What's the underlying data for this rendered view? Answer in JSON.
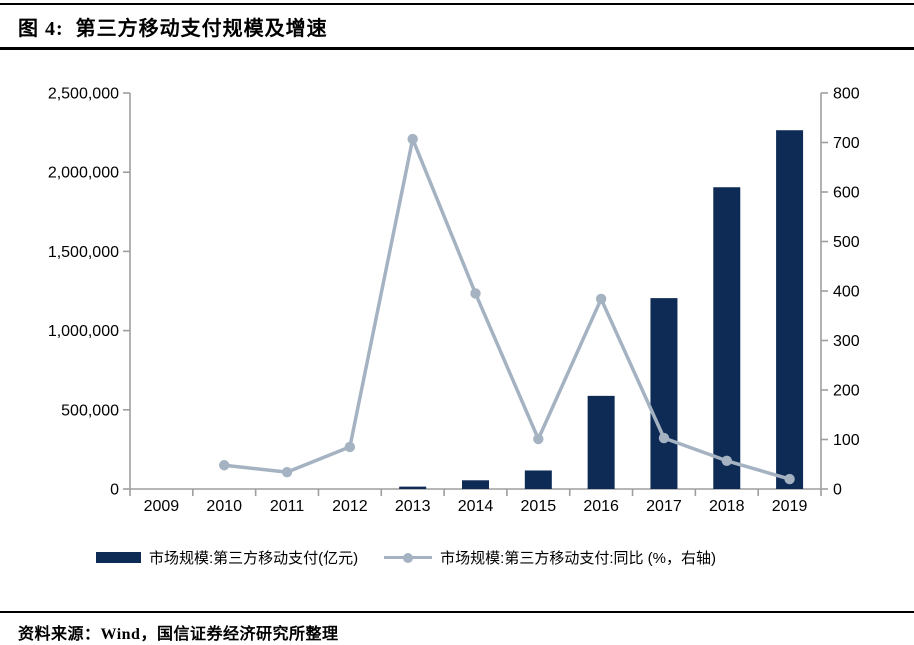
{
  "page": {
    "title": "图 4:  第三方移动支付规模及增速",
    "source_note": "资料来源：Wind，国信证券经济研究所整理"
  },
  "legend": {
    "bar_label": "市场规模:第三方移动支付(亿元)",
    "line_label": "市场规模:第三方移动支付:同比 (%，右轴)"
  },
  "colors": {
    "bar": "#0e2b55",
    "line": "#a4b2c2",
    "axis": "#9e9e9e",
    "rule": "#000000"
  },
  "chart_data": {
    "type": "bar",
    "subtype": "combo-bar-line-dual-axis",
    "title": "第三方移动支付规模及增速",
    "categories": [
      "2009",
      "2010",
      "2011",
      "2012",
      "2013",
      "2014",
      "2015",
      "2016",
      "2017",
      "2018",
      "2019"
    ],
    "series": [
      {
        "name": "市场规模:第三方移动支付(亿元)",
        "type": "bar",
        "axis": "left",
        "values": [
          0,
          0,
          0,
          0,
          15000,
          55000,
          117000,
          588000,
          1205000,
          1905000,
          2265000
        ]
      },
      {
        "name": "市场规模:第三方移动支付:同比 (%，右轴)",
        "type": "line",
        "axis": "right",
        "values": [
          null,
          48,
          34,
          85,
          707,
          395,
          101,
          384,
          103,
          57,
          20
        ]
      }
    ],
    "left_axis": {
      "min": 0,
      "max": 2500000,
      "tick_step": 500000,
      "tick_labels": [
        "0",
        "500,000",
        "1,000,000",
        "1,500,000",
        "2,000,000",
        "2,500,000"
      ]
    },
    "right_axis": {
      "min": 0,
      "max": 800,
      "tick_step": 100,
      "tick_labels": [
        "0",
        "100",
        "200",
        "300",
        "400",
        "500",
        "600",
        "700",
        "800"
      ]
    },
    "grid": false,
    "legend_position": "bottom"
  }
}
